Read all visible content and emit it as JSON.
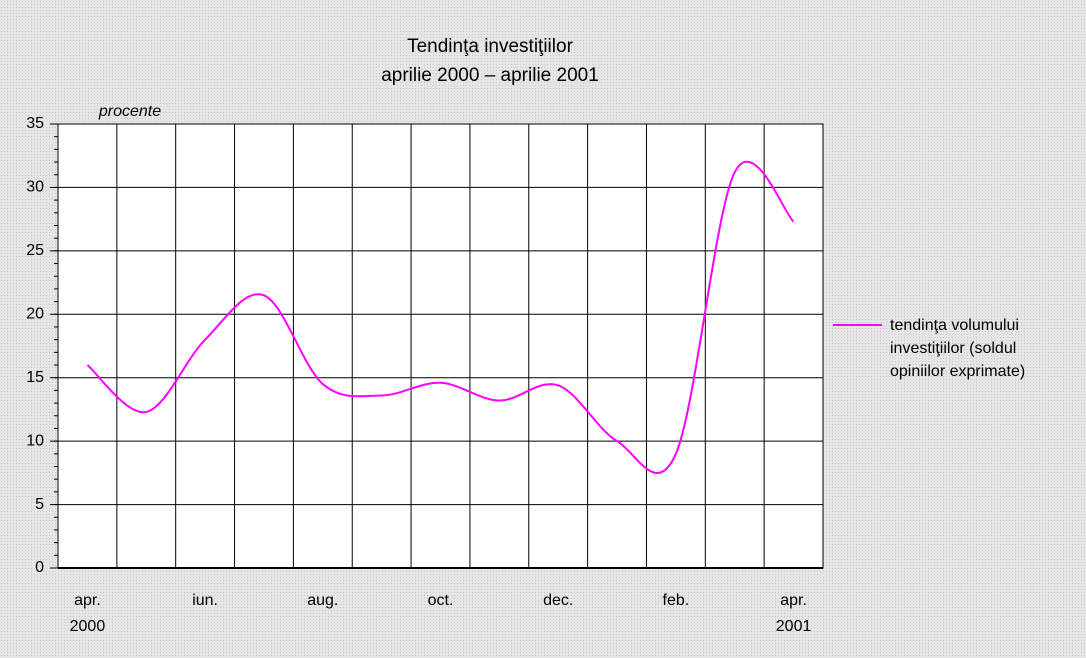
{
  "chart_data": {
    "type": "line",
    "title": "Tendinţa investiţiilor",
    "subtitle": "aprilie 2000 – aprilie 2001",
    "y_axis_label": "procente",
    "categories": [
      "apr.\n2000",
      null,
      "iun.",
      null,
      "aug.",
      null,
      "oct.",
      null,
      "dec.",
      null,
      "feb.",
      null,
      "apr.\n2001"
    ],
    "series": [
      {
        "name": "tendinţa volumului investiţiilor (soldul opiniilor exprimate)",
        "color": "#ff00ff",
        "values": [
          16,
          12.3,
          18,
          21.5,
          14.5,
          13.6,
          14.6,
          13.2,
          14.4,
          10,
          9,
          31.2,
          27.3
        ]
      }
    ],
    "ylim": [
      0,
      35
    ],
    "yticks": [
      0,
      5,
      10,
      15,
      20,
      25,
      30,
      35
    ],
    "grid": true,
    "legend": "right"
  }
}
